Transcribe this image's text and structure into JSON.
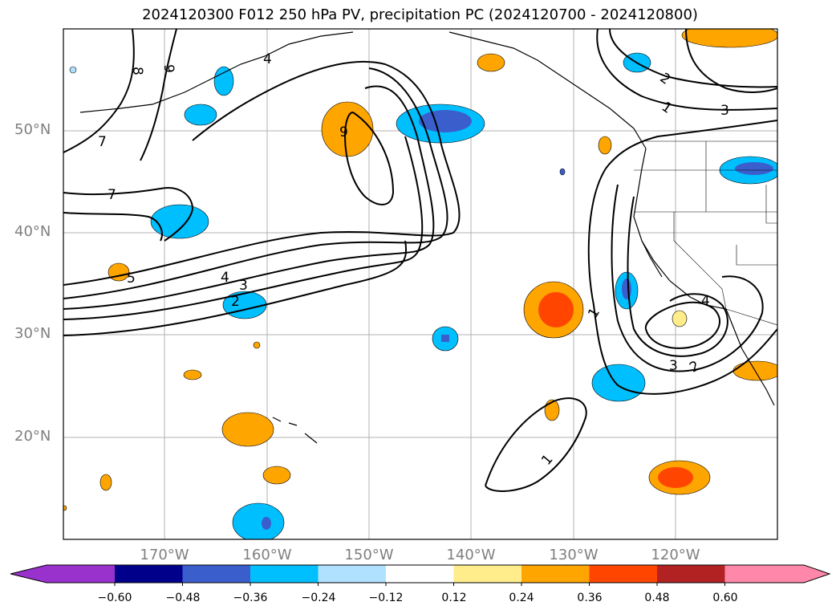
{
  "title": "2024120300 F012 250 hPa PV, precipitation PC (2024120700 - 2024120800)",
  "lat_labels": [
    "50°N",
    "40°N",
    "30°N",
    "20°N"
  ],
  "lon_labels": [
    "170°W",
    "160°W",
    "150°W",
    "140°W",
    "130°W",
    "120°W"
  ],
  "colorbar": {
    "ticks": [
      "−0.60",
      "−0.48",
      "−0.36",
      "−0.24",
      "−0.12",
      "0.12",
      "0.24",
      "0.36",
      "0.48",
      "0.60"
    ],
    "colors": [
      "#9932cc",
      "#00008b",
      "#3a5fcd",
      "#00bfff",
      "#b0e2ff",
      "#ffffff",
      "#ffec8b",
      "#ffa500",
      "#ff4500",
      "#b22222",
      "#ff88aa"
    ]
  },
  "contour_labels": [
    "8",
    "9",
    "7",
    "7",
    "5",
    "4",
    "3",
    "2",
    "4",
    "9",
    "2",
    "1",
    "3",
    "1",
    "3",
    "2",
    "4",
    "1"
  ]
}
